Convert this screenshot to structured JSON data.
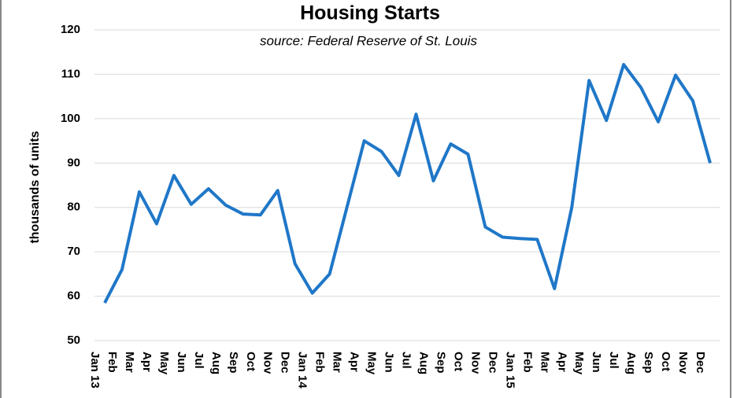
{
  "chart_data": {
    "type": "line",
    "title": "Housing Starts",
    "subtitle": "source: Federal Reserve of St. Louis",
    "y_label": "thousands of units",
    "categories": [
      "Jan 13",
      "Feb",
      "Mar",
      "Apr",
      "May",
      "Jun",
      "Jul",
      "Aug",
      "Sep",
      "Oct",
      "Nov",
      "Dec",
      "Jan 14",
      "Feb",
      "Mar",
      "Apr",
      "May",
      "Jun",
      "Jul",
      "Aug",
      "Sep",
      "Oct",
      "Nov",
      "Dec",
      "Jan 15",
      "Feb",
      "Mar",
      "Apr",
      "May",
      "Jun",
      "Jul",
      "Aug",
      "Sep",
      "Oct",
      "Nov",
      "Dec"
    ],
    "series": [
      {
        "name": "Housing Starts",
        "color": "#1f77c8",
        "values": [
          58.5,
          66,
          83.5,
          76.3,
          87.2,
          80.7,
          84.2,
          80.5,
          78.5,
          78.3,
          83.8,
          67.3,
          60.7,
          65,
          80,
          95,
          92.6,
          87.2,
          101,
          86,
          94.3,
          92,
          75.6,
          73.3,
          73,
          72.8,
          61.7,
          80,
          108.6,
          99.6,
          112.2,
          107,
          99.3,
          109.8,
          104,
          90
        ]
      }
    ],
    "ylim": [
      50,
      120
    ],
    "yticks": [
      50,
      60,
      70,
      80,
      90,
      100,
      110,
      120
    ],
    "grid": true
  }
}
